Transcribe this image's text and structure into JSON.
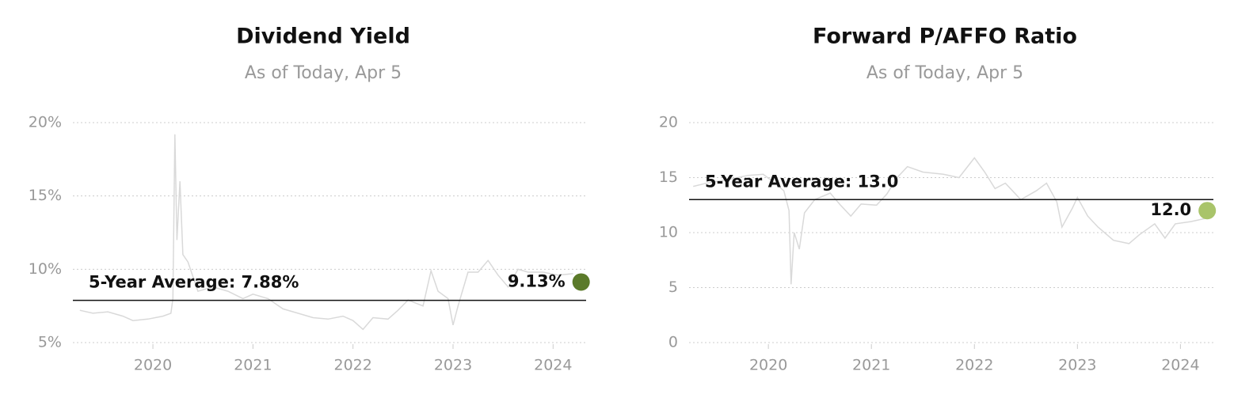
{
  "chart_data": [
    {
      "type": "line",
      "title": "Dividend Yield",
      "subtitle": "As of Today, Apr 5",
      "x": [
        2019.27,
        2019.4,
        2019.55,
        2019.7,
        2019.8,
        2019.95,
        2020.1,
        2020.18,
        2020.2,
        2020.22,
        2020.24,
        2020.27,
        2020.3,
        2020.35,
        2020.45,
        2020.6,
        2020.75,
        2020.9,
        2021.0,
        2021.15,
        2021.3,
        2021.45,
        2021.6,
        2021.75,
        2021.9,
        2022.0,
        2022.1,
        2022.2,
        2022.35,
        2022.45,
        2022.55,
        2022.7,
        2022.78,
        2022.85,
        2022.95,
        2023.0,
        2023.05,
        2023.15,
        2023.25,
        2023.35,
        2023.45,
        2023.55,
        2023.65,
        2023.75,
        2023.9,
        2024.05,
        2024.2
      ],
      "series": [
        {
          "color": "#d9d9d9",
          "values": [
            7.2,
            7.0,
            7.1,
            6.8,
            6.5,
            6.6,
            6.8,
            7.0,
            8.0,
            19.2,
            12.0,
            16.0,
            11.0,
            10.5,
            8.5,
            8.8,
            8.5,
            8.0,
            8.3,
            8.0,
            7.3,
            7.0,
            6.7,
            6.6,
            6.8,
            6.5,
            5.9,
            6.7,
            6.6,
            7.2,
            7.9,
            7.5,
            9.9,
            8.5,
            8.0,
            6.2,
            7.5,
            9.8,
            9.8,
            10.6,
            9.6,
            8.8,
            10.0,
            9.8,
            9.8,
            9.6,
            9.7
          ]
        }
      ],
      "average": {
        "value": 7.88,
        "label": "5-Year Average: 7.88%"
      },
      "current": {
        "x": 2024.28,
        "value": 9.13,
        "label": "9.13%",
        "color": "#5b7a2a"
      },
      "xlim": [
        2019.2,
        2024.33
      ],
      "xticks": [
        2020,
        2021,
        2022,
        2023,
        2024
      ],
      "ylim": [
        5,
        20
      ],
      "yticks": [
        {
          "value": 5,
          "label": "5%"
        },
        {
          "value": 10,
          "label": "10%"
        },
        {
          "value": 15,
          "label": "15%"
        },
        {
          "value": 20,
          "label": "20%"
        }
      ],
      "grid": true
    },
    {
      "type": "line",
      "title": "Forward P/AFFO Ratio",
      "subtitle": "As of Today, Apr 5",
      "x": [
        2019.27,
        2019.4,
        2019.6,
        2019.8,
        2019.95,
        2020.05,
        2020.15,
        2020.2,
        2020.22,
        2020.25,
        2020.3,
        2020.35,
        2020.45,
        2020.6,
        2020.7,
        2020.8,
        2020.9,
        2021.05,
        2021.15,
        2021.25,
        2021.35,
        2021.5,
        2021.7,
        2021.85,
        2022.0,
        2022.1,
        2022.2,
        2022.3,
        2022.45,
        2022.6,
        2022.7,
        2022.8,
        2022.85,
        2022.95,
        2023.0,
        2023.1,
        2023.2,
        2023.35,
        2023.5,
        2023.6,
        2023.75,
        2023.85,
        2023.95,
        2024.1,
        2024.25
      ],
      "series": [
        {
          "color": "#d9d9d9",
          "values": [
            14.2,
            14.5,
            14.8,
            15.2,
            15.3,
            14.6,
            13.8,
            12.0,
            5.3,
            10.0,
            8.5,
            11.8,
            13.0,
            13.6,
            12.5,
            11.5,
            12.6,
            12.5,
            13.5,
            15.0,
            16.0,
            15.5,
            15.3,
            15.0,
            16.8,
            15.5,
            14.0,
            14.5,
            13.0,
            13.8,
            14.5,
            12.8,
            10.5,
            12.2,
            13.2,
            11.5,
            10.5,
            9.3,
            9.0,
            9.8,
            10.8,
            9.5,
            10.8,
            11.0,
            11.3
          ]
        }
      ],
      "average": {
        "value": 13.0,
        "label": "5-Year Average: 13.0"
      },
      "current": {
        "x": 2024.26,
        "value": 12.0,
        "label": "12.0",
        "color": "#a9c46a"
      },
      "xlim": [
        2019.23,
        2024.32
      ],
      "xticks": [
        2020,
        2021,
        2022,
        2023,
        2024
      ],
      "ylim": [
        0,
        20
      ],
      "yticks": [
        0,
        5,
        10,
        15,
        20
      ],
      "grid": true
    }
  ]
}
